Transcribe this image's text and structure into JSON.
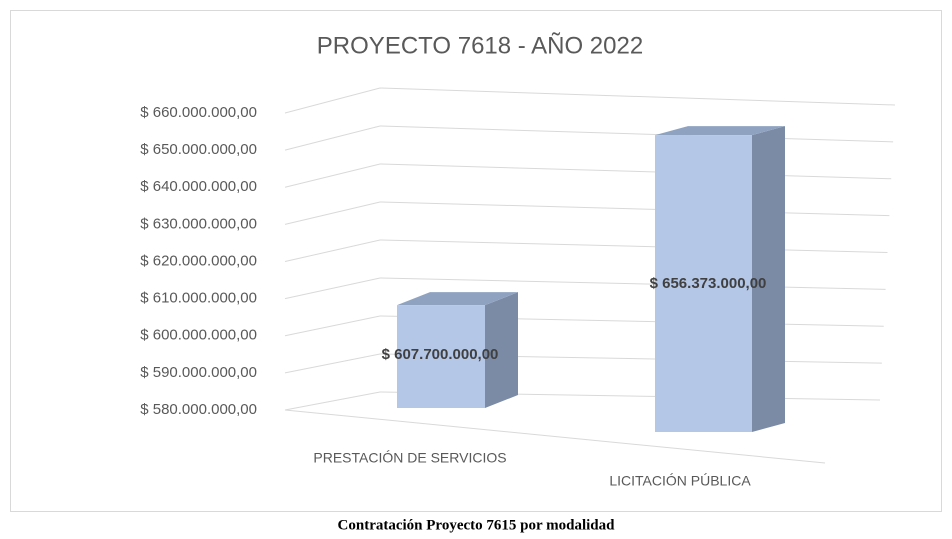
{
  "chart_data": {
    "type": "bar3d",
    "title": "PROYECTO 7618 - AÑO 2022",
    "categories": [
      "PRESTACIÓN DE SERVICIOS",
      "LICITACIÓN PÚBLICA"
    ],
    "values": [
      607700000,
      656373000
    ],
    "value_labels": [
      "$ 607.700.000,00",
      "$ 656.373.000,00"
    ],
    "color": "#b4c7e7",
    "ylim": [
      580000000,
      660000000
    ],
    "yticks": [
      {
        "value": 580000000,
        "label": "$ 580.000.000,00"
      },
      {
        "value": 590000000,
        "label": "$ 590.000.000,00"
      },
      {
        "value": 600000000,
        "label": "$ 600.000.000,00"
      },
      {
        "value": 610000000,
        "label": "$ 610.000.000,00"
      },
      {
        "value": 620000000,
        "label": "$ 620.000.000,00"
      },
      {
        "value": 630000000,
        "label": "$ 630.000.000,00"
      },
      {
        "value": 640000000,
        "label": "$ 640.000.000,00"
      },
      {
        "value": 650000000,
        "label": "$ 650.000.000,00"
      },
      {
        "value": 660000000,
        "label": "$ 660.000.000,00"
      }
    ],
    "grid": true
  },
  "caption": "Contratación Proyecto 7615 por modalidad"
}
